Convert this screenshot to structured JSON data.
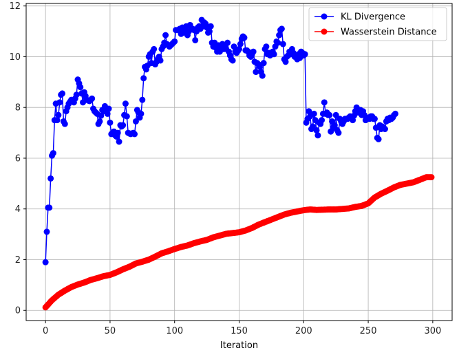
{
  "chart_data": {
    "type": "line",
    "title": "",
    "xlabel": "Iteration",
    "ylabel": "",
    "xlim": [
      -15,
      315
    ],
    "ylim": [
      -0.4,
      12.1
    ],
    "xticks": [
      0,
      50,
      100,
      150,
      200,
      250,
      300
    ],
    "yticks": [
      0,
      2,
      4,
      6,
      8,
      10,
      12
    ],
    "grid": true,
    "legend_position": "top-right",
    "marker": "circle",
    "series": [
      {
        "name": "KL Divergence",
        "color": "#0000ff",
        "anchors": [
          [
            0,
            1.9
          ],
          [
            1,
            3.1
          ],
          [
            2,
            4.05
          ],
          [
            3,
            4.05
          ],
          [
            4,
            5.2
          ],
          [
            5,
            6.1
          ],
          [
            6,
            6.2
          ],
          [
            7,
            7.5
          ],
          [
            8,
            8.15
          ],
          [
            9,
            7.5
          ],
          [
            10,
            7.7
          ],
          [
            11,
            8.2
          ],
          [
            12,
            8.5
          ],
          [
            13,
            8.55
          ],
          [
            14,
            7.45
          ],
          [
            15,
            7.35
          ],
          [
            16,
            7.85
          ],
          [
            18,
            8.15
          ],
          [
            20,
            8.3
          ],
          [
            22,
            8.2
          ],
          [
            24,
            8.5
          ],
          [
            25,
            9.1
          ],
          [
            26,
            8.95
          ],
          [
            27,
            8.8
          ],
          [
            28,
            8.55
          ],
          [
            29,
            8.2
          ],
          [
            30,
            8.6
          ],
          [
            32,
            8.3
          ],
          [
            34,
            8.25
          ],
          [
            36,
            8.35
          ],
          [
            37,
            7.95
          ],
          [
            38,
            7.85
          ],
          [
            40,
            7.75
          ],
          [
            41,
            7.35
          ],
          [
            42,
            7.45
          ],
          [
            44,
            7.9
          ],
          [
            45,
            7.85
          ],
          [
            46,
            8.05
          ],
          [
            47,
            7.95
          ],
          [
            48,
            7.75
          ],
          [
            49,
            7.95
          ],
          [
            50,
            7.4
          ],
          [
            51,
            6.95
          ],
          [
            53,
            7.05
          ],
          [
            54,
            6.9
          ],
          [
            55,
            6.85
          ],
          [
            56,
            7.0
          ],
          [
            57,
            6.65
          ],
          [
            58,
            7.3
          ],
          [
            59,
            7.25
          ],
          [
            60,
            7.3
          ],
          [
            61,
            7.7
          ],
          [
            62,
            8.15
          ],
          [
            63,
            7.65
          ],
          [
            64,
            7.0
          ],
          [
            66,
            6.95
          ],
          [
            68,
            7.0
          ],
          [
            69,
            6.95
          ],
          [
            70,
            7.45
          ],
          [
            71,
            7.9
          ],
          [
            72,
            7.8
          ],
          [
            73,
            7.6
          ],
          [
            74,
            7.75
          ],
          [
            75,
            8.3
          ],
          [
            76,
            9.15
          ],
          [
            77,
            9.6
          ],
          [
            78,
            9.5
          ],
          [
            79,
            9.65
          ],
          [
            80,
            10.0
          ],
          [
            81,
            10.1
          ],
          [
            82,
            9.75
          ],
          [
            83,
            10.2
          ],
          [
            84,
            10.3
          ],
          [
            85,
            9.7
          ],
          [
            86,
            9.8
          ],
          [
            87,
            9.9
          ],
          [
            88,
            10.0
          ],
          [
            89,
            9.85
          ],
          [
            90,
            10.3
          ],
          [
            91,
            10.4
          ],
          [
            92,
            10.55
          ],
          [
            93,
            10.85
          ],
          [
            94,
            10.5
          ],
          [
            95,
            10.45
          ],
          [
            96,
            10.4
          ],
          [
            98,
            10.5
          ],
          [
            99,
            10.55
          ],
          [
            100,
            10.6
          ],
          [
            101,
            11.05
          ],
          [
            103,
            11.05
          ],
          [
            104,
            11.1
          ],
          [
            105,
            10.9
          ],
          [
            106,
            11.15
          ],
          [
            107,
            10.95
          ],
          [
            108,
            11.0
          ],
          [
            109,
            11.2
          ],
          [
            110,
            10.85
          ],
          [
            111,
            11.0
          ],
          [
            112,
            11.25
          ],
          [
            113,
            11.1
          ],
          [
            114,
            11.1
          ],
          [
            115,
            11.05
          ],
          [
            116,
            10.65
          ],
          [
            117,
            11.0
          ],
          [
            118,
            11.15
          ],
          [
            119,
            11.2
          ],
          [
            120,
            11.1
          ],
          [
            121,
            11.45
          ],
          [
            122,
            11.2
          ],
          [
            123,
            11.35
          ],
          [
            124,
            11.3
          ],
          [
            125,
            11.15
          ],
          [
            126,
            10.95
          ],
          [
            127,
            11.0
          ],
          [
            128,
            11.2
          ],
          [
            129,
            10.55
          ],
          [
            130,
            10.4
          ],
          [
            131,
            10.55
          ],
          [
            132,
            10.35
          ],
          [
            133,
            10.2
          ],
          [
            134,
            10.45
          ],
          [
            135,
            10.2
          ],
          [
            136,
            10.35
          ],
          [
            137,
            10.5
          ],
          [
            138,
            10.3
          ],
          [
            139,
            10.45
          ],
          [
            140,
            10.3
          ],
          [
            141,
            10.55
          ],
          [
            142,
            10.2
          ],
          [
            143,
            10.05
          ],
          [
            144,
            9.9
          ],
          [
            145,
            9.85
          ],
          [
            146,
            10.4
          ],
          [
            147,
            10.2
          ],
          [
            148,
            10.15
          ],
          [
            150,
            10.3
          ],
          [
            152,
            10.7
          ],
          [
            153,
            10.8
          ],
          [
            154,
            10.75
          ],
          [
            155,
            10.25
          ],
          [
            156,
            10.25
          ],
          [
            157,
            10.2
          ],
          [
            158,
            10.05
          ],
          [
            159,
            10.0
          ],
          [
            160,
            10.1
          ],
          [
            161,
            10.2
          ],
          [
            162,
            9.8
          ],
          [
            163,
            9.4
          ],
          [
            164,
            9.75
          ],
          [
            165,
            9.7
          ],
          [
            166,
            9.6
          ],
          [
            167,
            9.4
          ],
          [
            168,
            9.25
          ],
          [
            169,
            9.75
          ],
          [
            170,
            10.3
          ],
          [
            171,
            10.4
          ],
          [
            172,
            10.1
          ],
          [
            173,
            10.15
          ],
          [
            174,
            10.05
          ],
          [
            175,
            10.1
          ],
          [
            176,
            10.2
          ],
          [
            177,
            10.1
          ],
          [
            178,
            10.4
          ],
          [
            179,
            10.6
          ],
          [
            180,
            10.55
          ],
          [
            181,
            10.85
          ],
          [
            182,
            11.05
          ],
          [
            183,
            11.1
          ],
          [
            184,
            10.5
          ],
          [
            185,
            9.9
          ],
          [
            186,
            9.8
          ],
          [
            187,
            10.0
          ],
          [
            188,
            10.05
          ],
          [
            189,
            10.2
          ],
          [
            190,
            10.1
          ],
          [
            191,
            10.3
          ],
          [
            192,
            10.15
          ],
          [
            193,
            10.0
          ],
          [
            194,
            10.05
          ],
          [
            195,
            9.9
          ],
          [
            196,
            10.1
          ],
          [
            197,
            9.95
          ],
          [
            198,
            10.2
          ],
          [
            199,
            10.15
          ],
          [
            200,
            10.05
          ],
          [
            201,
            10.1
          ],
          [
            202,
            7.4
          ],
          [
            203,
            7.55
          ],
          [
            204,
            7.85
          ],
          [
            205,
            7.65
          ],
          [
            206,
            7.15
          ],
          [
            207,
            7.25
          ],
          [
            208,
            7.75
          ],
          [
            209,
            7.5
          ],
          [
            210,
            7.1
          ],
          [
            211,
            6.9
          ],
          [
            212,
            7.4
          ],
          [
            213,
            7.35
          ],
          [
            214,
            7.5
          ],
          [
            215,
            7.75
          ],
          [
            216,
            8.2
          ],
          [
            217,
            7.75
          ],
          [
            218,
            7.8
          ],
          [
            219,
            7.7
          ],
          [
            220,
            7.7
          ],
          [
            221,
            7.05
          ],
          [
            222,
            7.45
          ],
          [
            223,
            7.2
          ],
          [
            224,
            7.3
          ],
          [
            225,
            7.7
          ],
          [
            226,
            7.1
          ],
          [
            227,
            7.0
          ],
          [
            228,
            7.55
          ],
          [
            229,
            7.45
          ],
          [
            230,
            7.35
          ],
          [
            232,
            7.55
          ],
          [
            234,
            7.55
          ],
          [
            236,
            7.65
          ],
          [
            238,
            7.5
          ],
          [
            240,
            7.85
          ],
          [
            241,
            8.0
          ],
          [
            242,
            7.8
          ],
          [
            243,
            7.85
          ],
          [
            244,
            7.9
          ],
          [
            245,
            7.7
          ],
          [
            246,
            7.85
          ],
          [
            247,
            7.7
          ],
          [
            248,
            7.5
          ],
          [
            249,
            7.55
          ],
          [
            250,
            7.6
          ],
          [
            251,
            7.55
          ],
          [
            252,
            7.65
          ],
          [
            253,
            7.65
          ],
          [
            254,
            7.55
          ],
          [
            255,
            7.55
          ],
          [
            256,
            7.2
          ],
          [
            257,
            6.8
          ],
          [
            258,
            6.75
          ],
          [
            259,
            7.3
          ],
          [
            260,
            7.15
          ],
          [
            261,
            7.25
          ],
          [
            262,
            7.2
          ],
          [
            263,
            7.15
          ],
          [
            264,
            7.45
          ],
          [
            265,
            7.55
          ],
          [
            266,
            7.5
          ],
          [
            267,
            7.6
          ],
          [
            268,
            7.55
          ],
          [
            269,
            7.6
          ],
          [
            270,
            7.7
          ],
          [
            271,
            7.75
          ]
        ]
      },
      {
        "name": "Wasserstein Distance",
        "color": "#ff0000",
        "anchors": [
          [
            0,
            0.12
          ],
          [
            5,
            0.4
          ],
          [
            10,
            0.62
          ],
          [
            15,
            0.78
          ],
          [
            20,
            0.92
          ],
          [
            25,
            1.02
          ],
          [
            30,
            1.1
          ],
          [
            35,
            1.2
          ],
          [
            40,
            1.27
          ],
          [
            45,
            1.35
          ],
          [
            50,
            1.4
          ],
          [
            55,
            1.5
          ],
          [
            60,
            1.62
          ],
          [
            65,
            1.72
          ],
          [
            70,
            1.85
          ],
          [
            75,
            1.92
          ],
          [
            80,
            2.0
          ],
          [
            85,
            2.12
          ],
          [
            90,
            2.25
          ],
          [
            95,
            2.33
          ],
          [
            100,
            2.42
          ],
          [
            105,
            2.5
          ],
          [
            110,
            2.56
          ],
          [
            115,
            2.65
          ],
          [
            120,
            2.72
          ],
          [
            125,
            2.78
          ],
          [
            130,
            2.88
          ],
          [
            135,
            2.95
          ],
          [
            140,
            3.02
          ],
          [
            145,
            3.05
          ],
          [
            150,
            3.08
          ],
          [
            155,
            3.15
          ],
          [
            160,
            3.25
          ],
          [
            165,
            3.38
          ],
          [
            170,
            3.48
          ],
          [
            175,
            3.58
          ],
          [
            180,
            3.68
          ],
          [
            185,
            3.78
          ],
          [
            190,
            3.85
          ],
          [
            195,
            3.9
          ],
          [
            200,
            3.95
          ],
          [
            205,
            3.98
          ],
          [
            210,
            3.96
          ],
          [
            215,
            3.97
          ],
          [
            220,
            3.98
          ],
          [
            225,
            3.98
          ],
          [
            230,
            4.0
          ],
          [
            235,
            4.02
          ],
          [
            240,
            4.08
          ],
          [
            245,
            4.12
          ],
          [
            250,
            4.22
          ],
          [
            255,
            4.45
          ],
          [
            260,
            4.6
          ],
          [
            265,
            4.72
          ],
          [
            270,
            4.85
          ],
          [
            275,
            4.95
          ],
          [
            280,
            5.0
          ],
          [
            285,
            5.05
          ],
          [
            290,
            5.15
          ],
          [
            295,
            5.25
          ],
          [
            299,
            5.25
          ]
        ]
      }
    ]
  }
}
